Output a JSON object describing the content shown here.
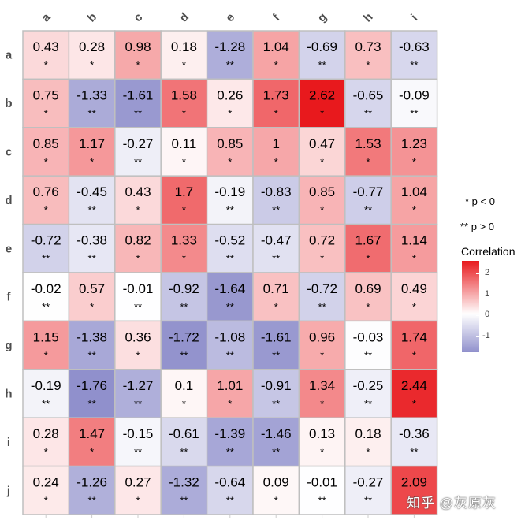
{
  "chart_data": {
    "type": "heatmap",
    "columns": [
      "a",
      "b",
      "c",
      "d",
      "e",
      "f",
      "g",
      "h",
      "i"
    ],
    "rows": [
      "a",
      "b",
      "c",
      "d",
      "e",
      "f",
      "g",
      "h",
      "i",
      "j"
    ],
    "values": [
      [
        0.43,
        0.28,
        0.98,
        0.18,
        -1.28,
        1.04,
        -0.69,
        0.73,
        -0.63
      ],
      [
        0.75,
        -1.33,
        -1.61,
        1.58,
        0.26,
        1.73,
        2.62,
        -0.65,
        -0.09
      ],
      [
        0.85,
        1.17,
        -0.27,
        0.11,
        0.85,
        1,
        0.47,
        1.53,
        1.23
      ],
      [
        0.76,
        -0.45,
        0.43,
        1.7,
        -0.19,
        -0.83,
        0.85,
        -0.77,
        1.04
      ],
      [
        -0.72,
        -0.38,
        0.82,
        1.33,
        -0.52,
        -0.47,
        0.72,
        1.67,
        1.14
      ],
      [
        -0.02,
        0.57,
        -0.01,
        -0.92,
        -1.64,
        0.71,
        -0.72,
        0.69,
        0.49
      ],
      [
        1.15,
        -1.38,
        0.36,
        -1.72,
        -1.08,
        -1.61,
        0.96,
        -0.03,
        1.74
      ],
      [
        -0.19,
        -1.76,
        -1.27,
        0.1,
        1.01,
        -0.91,
        1.34,
        -0.25,
        2.44
      ],
      [
        0.28,
        1.47,
        -0.15,
        -0.61,
        -1.39,
        -1.46,
        0.13,
        0.18,
        -0.36
      ],
      [
        0.24,
        -1.26,
        0.27,
        -1.32,
        -0.64,
        0.09,
        -0.01,
        -0.27,
        2.09
      ]
    ],
    "significance": [
      [
        "*",
        "*",
        "*",
        "*",
        "**",
        "*",
        "**",
        "*",
        "**"
      ],
      [
        "*",
        "**",
        "**",
        "*",
        "*",
        "*",
        "*",
        "**",
        "**"
      ],
      [
        "*",
        "*",
        "**",
        "*",
        "*",
        "*",
        "*",
        "*",
        "*"
      ],
      [
        "*",
        "**",
        "*",
        "*",
        "**",
        "**",
        "*",
        "**",
        "*"
      ],
      [
        "**",
        "**",
        "*",
        "*",
        "**",
        "**",
        "*",
        "*",
        "*"
      ],
      [
        "**",
        "*",
        "**",
        "**",
        "**",
        "*",
        "**",
        "*",
        "*"
      ],
      [
        "*",
        "**",
        "*",
        "**",
        "**",
        "**",
        "*",
        "**",
        "*"
      ],
      [
        "**",
        "**",
        "**",
        "*",
        "*",
        "**",
        "*",
        "**",
        "*"
      ],
      [
        "*",
        "*",
        "**",
        "**",
        "**",
        "**",
        "*",
        "*",
        "**"
      ],
      [
        "*",
        "**",
        "*",
        "**",
        "**",
        "*",
        "**",
        "**",
        "*"
      ]
    ],
    "legend": {
      "notes": [
        "* p < 0",
        "** p > 0"
      ],
      "title": "Correlation",
      "ticks": [
        "2",
        "1",
        "0",
        "-1"
      ],
      "tick_values": [
        2,
        1,
        0,
        -1
      ],
      "range": [
        -1.76,
        2.62
      ]
    },
    "colors": {
      "low": "#9090cc",
      "mid": "#ffffff",
      "high": "#e8191d",
      "grid": "#bfbfbf"
    }
  },
  "watermark": "知乎 @灰原灰"
}
